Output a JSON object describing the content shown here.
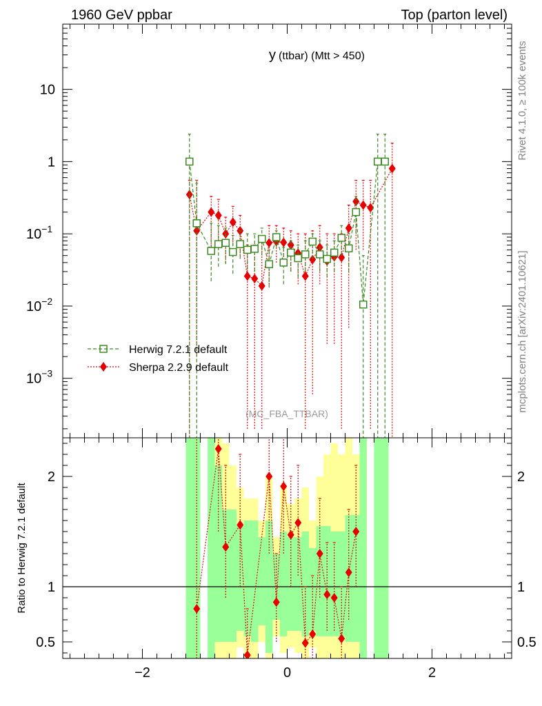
{
  "header": {
    "left": "1960 GeV ppbar",
    "right": "Top (parton level)"
  },
  "side_labels": {
    "rivet": "Rivet 4.1.0, ≥ 100k events",
    "mcplots": "mcplots.cern.ch [arXiv:2401.10621]"
  },
  "colors": {
    "herwig": "#3a8a1f",
    "sherpa": "#e60000",
    "band_green": "#99ff99",
    "band_yellow": "#ffff99"
  },
  "chart_data": [
    {
      "type": "line",
      "panel": "main",
      "title": "y (ttbar) (Mtt > 450)",
      "title_main": "y",
      "title_sub": "(ttbar) (Mtt > 450)",
      "watermark": "(MC_FBA_TTBAR)",
      "yscale": "log",
      "xlim": [
        -3.1,
        3.1
      ],
      "ylim": [
        0.00015,
        80
      ],
      "y_ticks": [
        {
          "value": 10,
          "label": "10",
          "exp": ""
        },
        {
          "value": 1,
          "label": "1",
          "exp": ""
        },
        {
          "value": 0.1,
          "label": "10",
          "exp": "−1"
        },
        {
          "value": 0.01,
          "label": "10",
          "exp": "−2"
        },
        {
          "value": 0.001,
          "label": "10",
          "exp": "−3"
        }
      ],
      "legend": [
        {
          "name": "Herwig 7.2.1 default",
          "marker": "open-square",
          "style": "dashed"
        },
        {
          "name": "Sherpa 2.2.9 default",
          "marker": "diamond",
          "style": "dotted"
        }
      ],
      "series": [
        {
          "name": "Herwig 7.2.1 default",
          "x": [
            -1.35,
            -1.25,
            -1.05,
            -0.95,
            -0.85,
            -0.75,
            -0.65,
            -0.55,
            -0.45,
            -0.35,
            -0.25,
            -0.15,
            -0.05,
            0.05,
            0.15,
            0.25,
            0.35,
            0.45,
            0.55,
            0.65,
            0.75,
            0.85,
            0.95,
            1.05,
            1.25,
            1.35
          ],
          "y": [
            1.0,
            0.14,
            0.058,
            0.072,
            0.075,
            0.056,
            0.072,
            0.06,
            0.062,
            0.085,
            0.038,
            0.09,
            0.04,
            0.055,
            0.046,
            0.052,
            0.078,
            0.052,
            0.045,
            0.055,
            0.088,
            0.063,
            0.2,
            0.0105,
            1.0,
            1.0
          ],
          "y_lo": [
            0.0001,
            0.0001,
            0.022,
            0.035,
            0.038,
            0.028,
            0.045,
            0.032,
            0.03,
            0.05,
            0.018,
            0.065,
            0.02,
            0.03,
            0.025,
            0.03,
            0.045,
            0.03,
            0.025,
            0.03,
            0.05,
            0.03,
            0.1,
            0.0001,
            0.0001,
            0.0001
          ],
          "y_hi": [
            2.4,
            0.5,
            0.14,
            0.13,
            0.12,
            0.095,
            0.11,
            0.1,
            0.1,
            0.12,
            0.06,
            0.11,
            0.065,
            0.08,
            0.07,
            0.08,
            0.1,
            0.08,
            0.07,
            0.08,
            0.13,
            0.1,
            0.33,
            0.05,
            2.4,
            2.4
          ]
        },
        {
          "name": "Sherpa 2.2.9 default",
          "x": [
            -1.35,
            -1.25,
            -1.05,
            -0.95,
            -0.85,
            -0.75,
            -0.65,
            -0.55,
            -0.45,
            -0.35,
            -0.25,
            -0.15,
            -0.05,
            0.05,
            0.15,
            0.25,
            0.35,
            0.45,
            0.55,
            0.65,
            0.75,
            0.85,
            0.95,
            1.05,
            1.15,
            1.45
          ],
          "y": [
            0.35,
            0.11,
            0.2,
            0.18,
            0.1,
            0.145,
            0.11,
            0.026,
            0.024,
            0.019,
            0.075,
            0.078,
            0.076,
            0.07,
            0.054,
            0.026,
            0.044,
            0.065,
            0.042,
            0.048,
            0.047,
            0.12,
            0.28,
            0.25,
            0.23,
            0.8
          ],
          "y_lo": [
            0.0001,
            0.002,
            0.06,
            0.08,
            0.04,
            0.07,
            0.05,
            0.0002,
            0.0002,
            0.0002,
            0.02,
            0.04,
            0.04,
            0.03,
            0.02,
            0.0002,
            0.0006,
            0.02,
            0.003,
            0.003,
            0.0002,
            0.005,
            0.06,
            0.06,
            0.0002,
            0.0001
          ],
          "y_hi": [
            0.55,
            0.55,
            0.33,
            0.3,
            0.17,
            0.24,
            0.18,
            0.07,
            0.07,
            0.08,
            0.13,
            0.13,
            0.12,
            0.11,
            0.1,
            0.1,
            0.11,
            0.13,
            0.1,
            0.1,
            0.1,
            0.25,
            0.55,
            0.55,
            0.55,
            1.8
          ]
        }
      ]
    },
    {
      "type": "line",
      "panel": "ratio",
      "ylabel": "Ratio to Herwig 7.2.1 default",
      "xlim": [
        -3.1,
        3.1
      ],
      "ylim": [
        0.35,
        2.35
      ],
      "x_ticks": [
        {
          "value": -2,
          "label": "−2"
        },
        {
          "value": 0,
          "label": "0"
        },
        {
          "value": 2,
          "label": "2"
        }
      ],
      "y_ticks": [
        {
          "value": 2,
          "label": "2"
        },
        {
          "value": 1,
          "label": "1"
        },
        {
          "value": 0.5,
          "label": "0.5"
        }
      ],
      "reference_line": 1,
      "bands": [
        {
          "x": [
            -1.4,
            -1.3
          ],
          "green": [
            0.3,
            2.5
          ],
          "yellow": [
            0.3,
            2.5
          ]
        },
        {
          "x": [
            -1.3,
            -1.2
          ],
          "green": [
            0.3,
            2.5
          ],
          "yellow": [
            0.3,
            2.5
          ]
        },
        {
          "x": [
            -1.1,
            -1.0
          ],
          "green": [
            0.3,
            2.5
          ],
          "yellow": [
            0.3,
            2.5
          ]
        },
        {
          "x": [
            -1.0,
            -0.9
          ],
          "green": [
            0.5,
            2.1
          ],
          "yellow": [
            0.3,
            2.5
          ]
        },
        {
          "x": [
            -0.9,
            -0.8
          ],
          "green": [
            0.5,
            1.7
          ],
          "yellow": [
            0.3,
            2.3
          ]
        },
        {
          "x": [
            -0.8,
            -0.7
          ],
          "green": [
            0.5,
            1.7
          ],
          "yellow": [
            0.3,
            2.1
          ]
        },
        {
          "x": [
            -0.7,
            -0.6
          ],
          "green": [
            0.6,
            1.55
          ],
          "yellow": [
            0.45,
            1.9
          ]
        },
        {
          "x": [
            -0.6,
            -0.5
          ],
          "green": [
            0.55,
            1.6
          ],
          "yellow": [
            0.35,
            1.8
          ]
        },
        {
          "x": [
            -0.5,
            -0.4
          ],
          "green": [
            0.5,
            1.6
          ],
          "yellow": [
            0.35,
            1.8
          ]
        },
        {
          "x": [
            -0.4,
            -0.3
          ],
          "green": [
            0.65,
            1.45
          ],
          "yellow": [
            0.5,
            1.6
          ]
        },
        {
          "x": [
            -0.3,
            -0.2
          ],
          "green": [
            0.4,
            1.6
          ],
          "yellow": [
            0.35,
            2.0
          ]
        },
        {
          "x": [
            -0.2,
            -0.1
          ],
          "green": [
            0.7,
            1.3
          ],
          "yellow": [
            0.55,
            1.45
          ]
        },
        {
          "x": [
            -0.1,
            0.0
          ],
          "green": [
            0.55,
            1.5
          ],
          "yellow": [
            0.4,
            1.9
          ]
        },
        {
          "x": [
            0.0,
            0.1
          ],
          "green": [
            0.6,
            1.45
          ],
          "yellow": [
            0.45,
            1.75
          ]
        },
        {
          "x": [
            0.1,
            0.2
          ],
          "green": [
            0.6,
            1.45
          ],
          "yellow": [
            0.4,
            1.8
          ]
        },
        {
          "x": [
            0.2,
            0.3
          ],
          "green": [
            0.55,
            1.5
          ],
          "yellow": [
            0.35,
            1.9
          ]
        },
        {
          "x": [
            0.3,
            0.4
          ],
          "green": [
            0.6,
            1.35
          ],
          "yellow": [
            0.45,
            1.6
          ]
        },
        {
          "x": [
            0.4,
            0.5
          ],
          "green": [
            0.55,
            1.55
          ],
          "yellow": [
            0.35,
            2.0
          ]
        },
        {
          "x": [
            0.5,
            0.6
          ],
          "green": [
            0.55,
            1.55
          ],
          "yellow": [
            0.35,
            2.2
          ]
        },
        {
          "x": [
            0.6,
            0.7
          ],
          "green": [
            0.55,
            1.5
          ],
          "yellow": [
            0.35,
            2.3
          ]
        },
        {
          "x": [
            0.7,
            0.8
          ],
          "green": [
            0.55,
            1.5
          ],
          "yellow": [
            0.35,
            2.2
          ]
        },
        {
          "x": [
            0.8,
            0.9
          ],
          "green": [
            0.5,
            1.65
          ],
          "yellow": [
            0.35,
            2.4
          ]
        },
        {
          "x": [
            0.9,
            1.0
          ],
          "green": [
            0.5,
            1.65
          ],
          "yellow": [
            0.35,
            2.2
          ]
        },
        {
          "x": [
            1.0,
            1.1
          ],
          "green": [
            0.3,
            2.5
          ],
          "yellow": [
            0.3,
            2.5
          ]
        },
        {
          "x": [
            1.2,
            1.3
          ],
          "green": [
            0.3,
            2.5
          ],
          "yellow": [
            0.3,
            2.5
          ]
        },
        {
          "x": [
            1.3,
            1.4
          ],
          "green": [
            0.3,
            2.5
          ],
          "yellow": [
            0.3,
            2.5
          ]
        }
      ],
      "series": [
        {
          "name": "Sherpa 2.2.9 default",
          "x": [
            -1.25,
            -0.95,
            -0.85,
            -0.65,
            -0.55,
            -0.25,
            -0.15,
            -0.05,
            0.05,
            0.15,
            0.25,
            0.35,
            0.45,
            0.55,
            0.65,
            0.75,
            0.85,
            0.95
          ],
          "y": [
            0.8,
            2.25,
            1.36,
            1.56,
            0.38,
            2.0,
            0.86,
            1.91,
            1.47,
            1.58,
            0.49,
            0.57,
            1.3,
            0.93,
            0.9,
            0.53,
            1.13,
            1.5
          ],
          "y_lo": [
            0.3,
            1.5,
            0.9,
            1.0,
            0.2,
            1.3,
            0.5,
            1.3,
            1.0,
            1.1,
            0.3,
            0.3,
            0.9,
            0.6,
            0.6,
            0.3,
            0.7,
            1.0
          ],
          "y_hi": [
            2.5,
            2.5,
            2.1,
            2.2,
            0.8,
            2.5,
            1.3,
            2.5,
            2.0,
            2.1,
            1.0,
            1.1,
            1.8,
            1.4,
            1.4,
            1.0,
            1.7,
            2.1
          ]
        }
      ]
    }
  ]
}
